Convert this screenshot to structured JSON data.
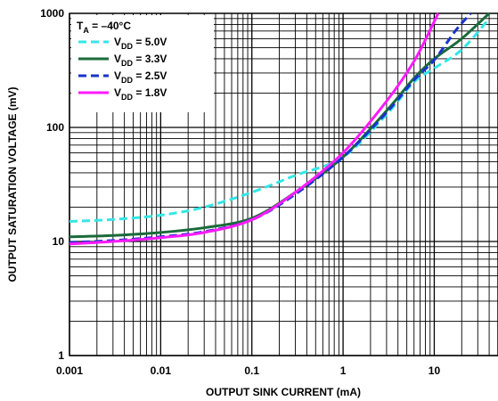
{
  "chart_data": {
    "type": "line",
    "x_scale": "log",
    "y_scale": "log",
    "xlim": [
      0.001,
      50
    ],
    "ylim": [
      1,
      1000
    ],
    "xlabel": "OUTPUT SINK CURRENT (mA)",
    "ylabel": "OUTPUT SATURATION VOLTAGE (mV)",
    "x_ticks": [
      "0.001",
      "0.01",
      "0.1",
      "1",
      "10"
    ],
    "y_ticks": [
      "1",
      "10",
      "100",
      "1000"
    ],
    "x_tick_values": [
      0.001,
      0.01,
      0.1,
      1,
      10
    ],
    "y_tick_values": [
      1,
      10,
      100,
      1000
    ],
    "grid": true,
    "legend_position": "top-left",
    "legend_title": {
      "main": "T",
      "sub": "A",
      "suffix": " = –40°C"
    },
    "series": [
      {
        "name": "VDD = 5.0V",
        "label_main": "V",
        "label_sub": "DD",
        "label_suffix": " = 5.0V",
        "color": "#33e6e6",
        "dash": "dash",
        "points": [
          [
            0.001,
            15
          ],
          [
            0.003,
            15.6
          ],
          [
            0.01,
            17
          ],
          [
            0.03,
            20
          ],
          [
            0.1,
            27
          ],
          [
            0.3,
            38
          ],
          [
            1,
            55
          ],
          [
            3,
            130
          ],
          [
            6,
            250
          ],
          [
            10,
            330
          ],
          [
            20,
            480
          ],
          [
            40,
            900
          ]
        ]
      },
      {
        "name": "VDD = 3.3V",
        "label_main": "V",
        "label_sub": "DD",
        "label_suffix": " = 3.3V",
        "color": "#1a6b3a",
        "dash": "solid",
        "points": [
          [
            0.001,
            11
          ],
          [
            0.003,
            11.3
          ],
          [
            0.01,
            12
          ],
          [
            0.03,
            13.2
          ],
          [
            0.1,
            16
          ],
          [
            0.3,
            27
          ],
          [
            1,
            55
          ],
          [
            3,
            140
          ],
          [
            6,
            270
          ],
          [
            10,
            400
          ],
          [
            20,
            600
          ],
          [
            40,
            1000
          ]
        ]
      },
      {
        "name": "VDD = 2.5V",
        "label_main": "V",
        "label_sub": "DD",
        "label_suffix": " = 2.5V",
        "color": "#1a33cc",
        "dash": "dash",
        "points": [
          [
            0.001,
            9.8
          ],
          [
            0.003,
            10.2
          ],
          [
            0.01,
            11
          ],
          [
            0.03,
            12.2
          ],
          [
            0.1,
            15.5
          ],
          [
            0.3,
            26
          ],
          [
            1,
            55
          ],
          [
            3,
            135
          ],
          [
            6,
            260
          ],
          [
            10,
            390
          ],
          [
            17,
            700
          ],
          [
            25,
            1000
          ]
        ]
      },
      {
        "name": "VDD = 1.8V",
        "label_main": "V",
        "label_sub": "DD",
        "label_suffix": " = 1.8V",
        "color": "#ff1aff",
        "dash": "solid",
        "points": [
          [
            0.001,
            9.5
          ],
          [
            0.003,
            10
          ],
          [
            0.01,
            10.8
          ],
          [
            0.03,
            12
          ],
          [
            0.1,
            15.5
          ],
          [
            0.3,
            27
          ],
          [
            1,
            60
          ],
          [
            3,
            170
          ],
          [
            6,
            380
          ],
          [
            10,
            850
          ],
          [
            11,
            1000
          ]
        ]
      }
    ]
  }
}
